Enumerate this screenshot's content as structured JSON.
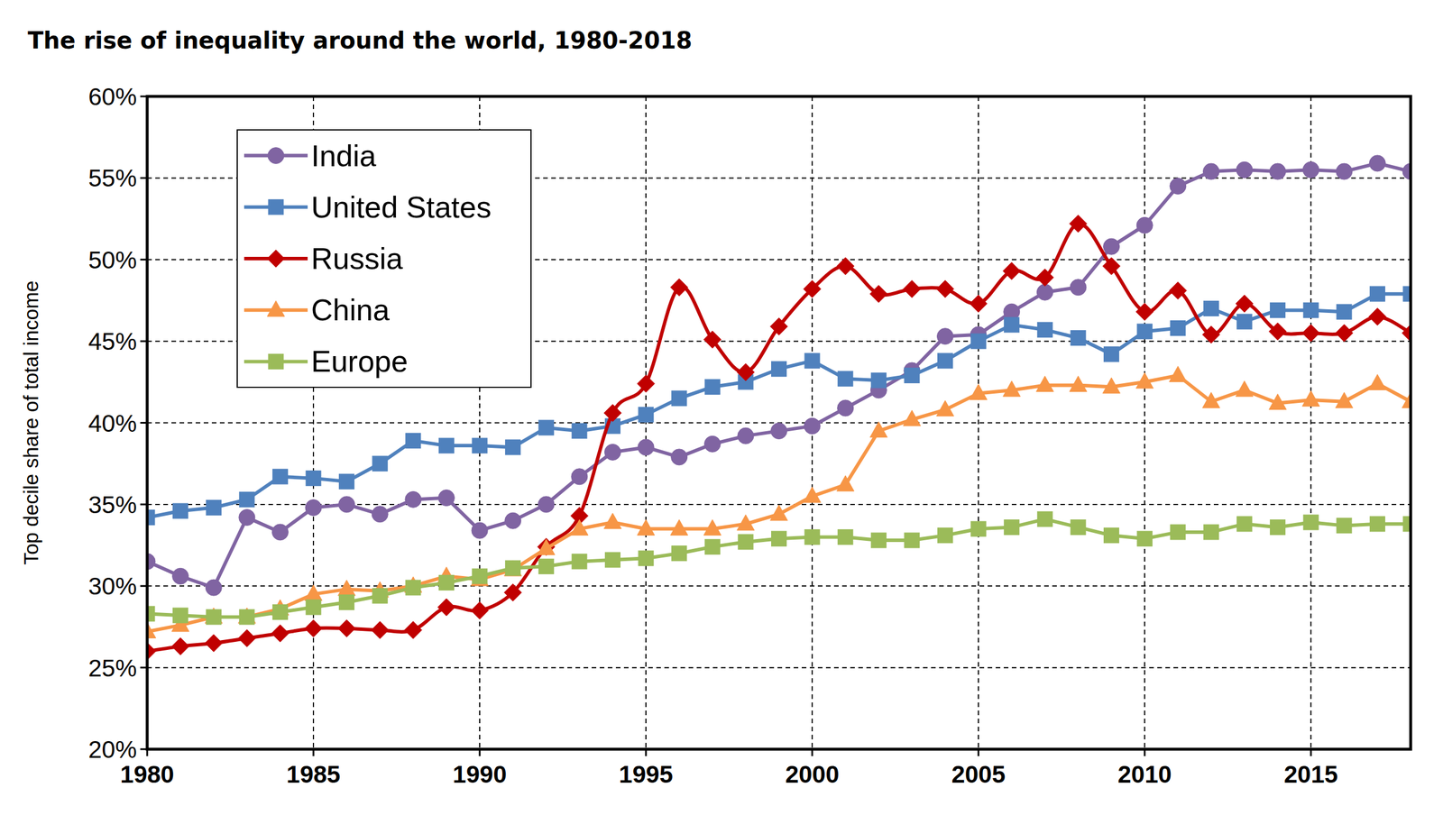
{
  "chart_data": {
    "type": "line",
    "title": "The rise of inequality around the world, 1980-2018",
    "y_label": "Top decile share of total income",
    "x": [
      1980,
      1981,
      1982,
      1983,
      1984,
      1985,
      1986,
      1987,
      1988,
      1989,
      1990,
      1991,
      1992,
      1993,
      1994,
      1995,
      1996,
      1997,
      1998,
      1999,
      2000,
      2001,
      2002,
      2003,
      2004,
      2005,
      2006,
      2007,
      2008,
      2009,
      2010,
      2011,
      2012,
      2013,
      2014,
      2015,
      2016,
      2017,
      2018
    ],
    "series": [
      {
        "name": "India",
        "color": "#8064a2",
        "marker": "circle",
        "values": [
          31.5,
          30.6,
          29.9,
          34.2,
          33.3,
          34.8,
          35.0,
          34.4,
          35.3,
          35.4,
          33.4,
          34.0,
          35.0,
          36.7,
          38.2,
          38.5,
          37.9,
          38.7,
          39.2,
          39.5,
          39.8,
          40.9,
          42.0,
          43.2,
          45.3,
          45.4,
          46.8,
          48.0,
          48.3,
          50.8,
          52.1,
          54.5,
          55.4,
          55.5,
          55.4,
          55.5,
          55.4,
          55.9,
          55.4
        ]
      },
      {
        "name": "United States",
        "color": "#4f81bd",
        "marker": "square",
        "values": [
          34.2,
          34.6,
          34.8,
          35.3,
          36.7,
          36.6,
          36.4,
          37.5,
          38.9,
          38.6,
          38.6,
          38.5,
          39.7,
          39.5,
          39.8,
          40.5,
          41.5,
          42.2,
          42.5,
          43.3,
          43.8,
          42.7,
          42.6,
          42.9,
          43.8,
          45.0,
          46.0,
          45.7,
          45.2,
          44.2,
          45.6,
          45.8,
          47.0,
          46.2,
          46.9,
          46.9,
          46.8,
          47.9,
          47.9
        ]
      },
      {
        "name": "Russia",
        "color": "#c00000",
        "marker": "diamond",
        "line_style": "smooth",
        "values": [
          26.0,
          26.3,
          26.5,
          26.8,
          27.1,
          27.4,
          27.4,
          27.3,
          27.3,
          28.7,
          28.5,
          29.6,
          32.4,
          34.3,
          40.6,
          42.4,
          48.3,
          45.1,
          43.1,
          45.9,
          48.2,
          49.6,
          47.9,
          48.2,
          48.2,
          47.3,
          49.3,
          48.9,
          52.2,
          49.6,
          46.8,
          48.1,
          45.4,
          47.3,
          45.6,
          45.5,
          45.5,
          46.5,
          45.5
        ]
      },
      {
        "name": "China",
        "color": "#f79646",
        "marker": "triangle",
        "values": [
          27.2,
          27.6,
          28.1,
          28.1,
          28.6,
          29.5,
          29.8,
          29.7,
          30.0,
          30.6,
          30.4,
          31.0,
          32.3,
          33.5,
          33.9,
          33.5,
          33.5,
          33.5,
          33.8,
          34.4,
          35.5,
          36.2,
          39.5,
          40.2,
          40.8,
          41.8,
          42.0,
          42.3,
          42.3,
          42.2,
          42.5,
          42.9,
          41.3,
          42.0,
          41.2,
          41.4,
          41.3,
          42.4,
          41.3
        ]
      },
      {
        "name": "Europe",
        "color": "#9bbb59",
        "marker": "square",
        "values": [
          28.3,
          28.2,
          28.1,
          28.1,
          28.4,
          28.7,
          29.0,
          29.4,
          29.9,
          30.2,
          30.6,
          31.1,
          31.2,
          31.5,
          31.6,
          31.7,
          32.0,
          32.4,
          32.7,
          32.9,
          33.0,
          33.0,
          32.8,
          32.8,
          33.1,
          33.5,
          33.6,
          34.1,
          33.6,
          33.1,
          32.9,
          33.3,
          33.3,
          33.8,
          33.6,
          33.9,
          33.7,
          33.8,
          33.8
        ]
      }
    ],
    "xlim": [
      1980,
      2018
    ],
    "xticks": [
      1980,
      1985,
      1990,
      1995,
      2000,
      2005,
      2010,
      2015
    ],
    "ylim": [
      20,
      60
    ],
    "yticks": [
      {
        "value": 20,
        "label": "20%"
      },
      {
        "value": 25,
        "label": "25%"
      },
      {
        "value": 30,
        "label": "30%"
      },
      {
        "value": 35,
        "label": "35%"
      },
      {
        "value": 40,
        "label": "40%"
      },
      {
        "value": 45,
        "label": "45%"
      },
      {
        "value": 50,
        "label": "50%"
      },
      {
        "value": 55,
        "label": "55%"
      },
      {
        "value": 60,
        "label": "60%"
      }
    ],
    "grid": true,
    "legend": "upper-left"
  }
}
